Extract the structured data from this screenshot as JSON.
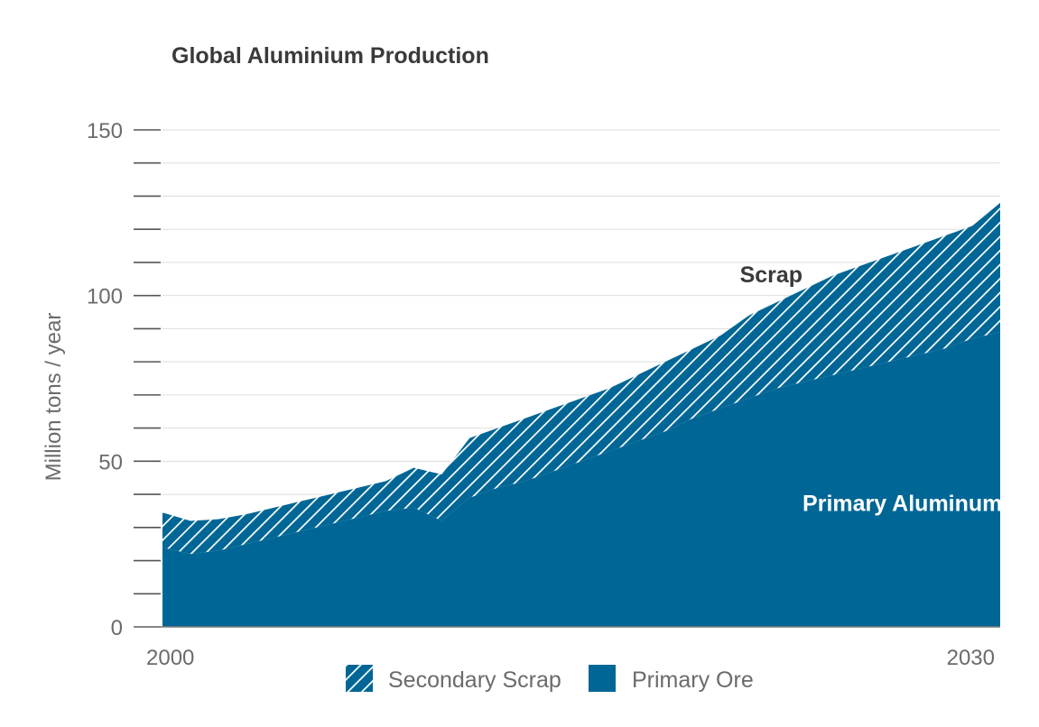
{
  "chart_data": {
    "type": "area",
    "title": "Global Aluminium Production",
    "ylabel": "Million tons / year",
    "xlabel": "",
    "xlim": [
      2000,
      2030
    ],
    "ylim": [
      0,
      150
    ],
    "x_tick_labels": [
      "2000",
      "2030"
    ],
    "y_tick_labels": [
      "0",
      "50",
      "100",
      "150"
    ],
    "stacked": true,
    "grid": true,
    "legend_placement": "bottom-center",
    "x": [
      2000,
      2001,
      2002,
      2003,
      2004,
      2005,
      2006,
      2007,
      2008,
      2009,
      2010,
      2011,
      2012,
      2013,
      2014,
      2015,
      2016,
      2017,
      2018,
      2019,
      2020,
      2021,
      2022,
      2023,
      2024,
      2025,
      2026,
      2027,
      2028,
      2029,
      2030
    ],
    "series": [
      {
        "name": "Primary Ore",
        "color": "#006695",
        "values": [
          24,
          22,
          23,
          25,
          27,
          29,
          31,
          33,
          35,
          36,
          32,
          39,
          42,
          44,
          47,
          50,
          53,
          56,
          59,
          63,
          66,
          69,
          72,
          74,
          76,
          78,
          80,
          82,
          84,
          87,
          89
        ]
      },
      {
        "name": "Secondary Scrap",
        "color": "#006695",
        "pattern": "diagonal-hatch",
        "values": [
          10.5,
          10,
          9.5,
          9,
          9,
          9,
          9,
          9,
          9,
          12,
          14,
          18,
          18,
          19,
          19,
          19,
          19,
          20,
          21,
          21,
          22,
          25,
          26,
          28,
          30,
          31,
          32,
          33,
          34,
          34,
          39
        ]
      }
    ],
    "annotations": [
      {
        "text": "Scrap",
        "x": 2021.8,
        "y": 104,
        "style": "dark"
      },
      {
        "text": "Primary Aluminum",
        "x": 2026.5,
        "y": 35,
        "style": "light"
      }
    ]
  }
}
